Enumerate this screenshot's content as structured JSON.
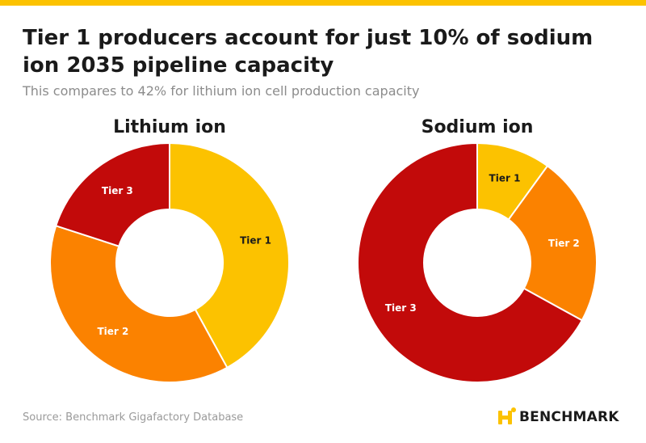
{
  "header": {
    "title": "Tier 1 producers account for just 10% of sodium ion 2035 pipeline capacity",
    "subtitle": "This compares to 42% for lithium ion cell production capacity"
  },
  "footer": {
    "source": "Source: Benchmark Gigafactory Database",
    "brand_name": "BENCHMARK",
    "brand_logo_icon": "benchmark-logo-icon"
  },
  "colors": {
    "accent": "#fcc200",
    "tier1": "#fcc200",
    "tier2": "#fb8200",
    "tier3": "#c20a0a"
  },
  "chart_data": [
    {
      "type": "pie",
      "title": "Lithium ion",
      "categories": [
        "Tier 1",
        "Tier 2",
        "Tier 3"
      ],
      "values": [
        42,
        38,
        20
      ]
    },
    {
      "type": "pie",
      "title": "Sodium ion",
      "categories": [
        "Tier 1",
        "Tier 2",
        "Tier 3"
      ],
      "values": [
        10,
        23,
        67
      ]
    }
  ]
}
